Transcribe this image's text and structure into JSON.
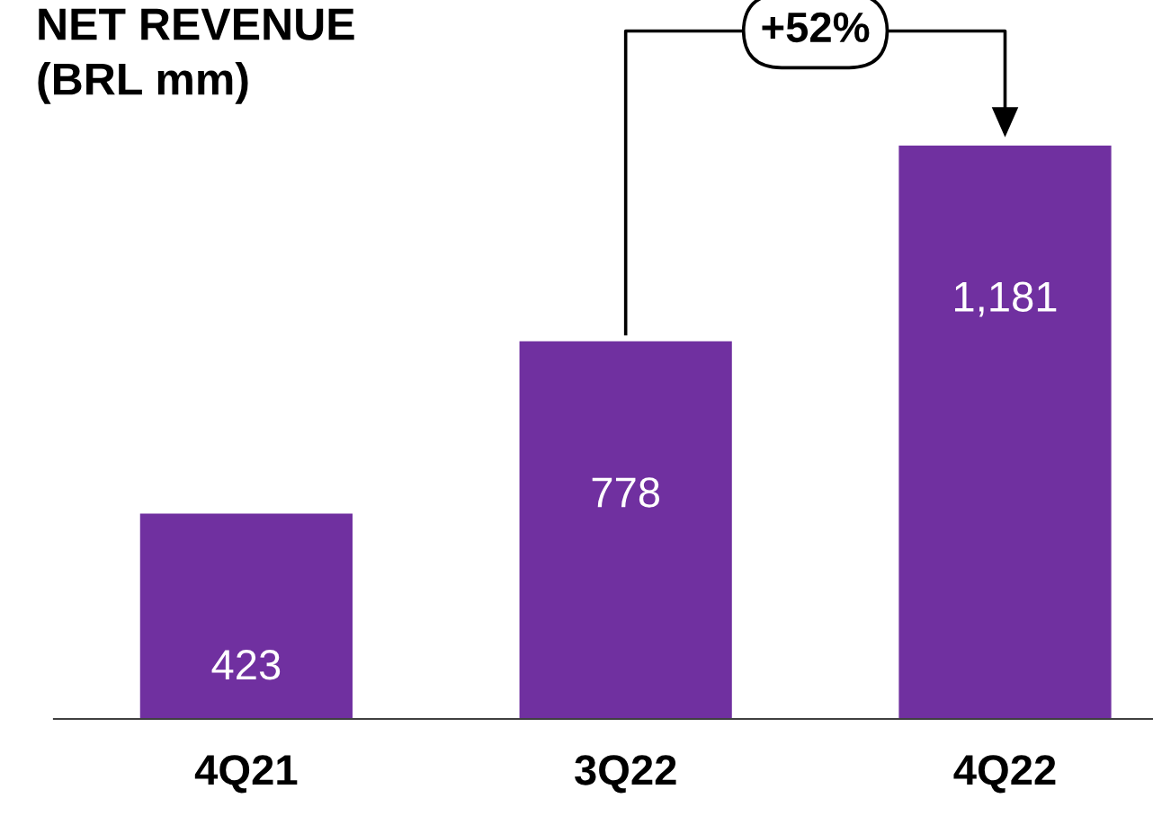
{
  "chart_data": {
    "type": "bar",
    "title": "NET REVENUE\n(BRL mm)",
    "categories": [
      "4Q21",
      "3Q22",
      "4Q22"
    ],
    "values": [
      423,
      778,
      1181
    ],
    "color": "#7030a0",
    "value_labels": [
      "423",
      "778",
      "1,181"
    ],
    "annotations": [
      "+52%"
    ]
  }
}
